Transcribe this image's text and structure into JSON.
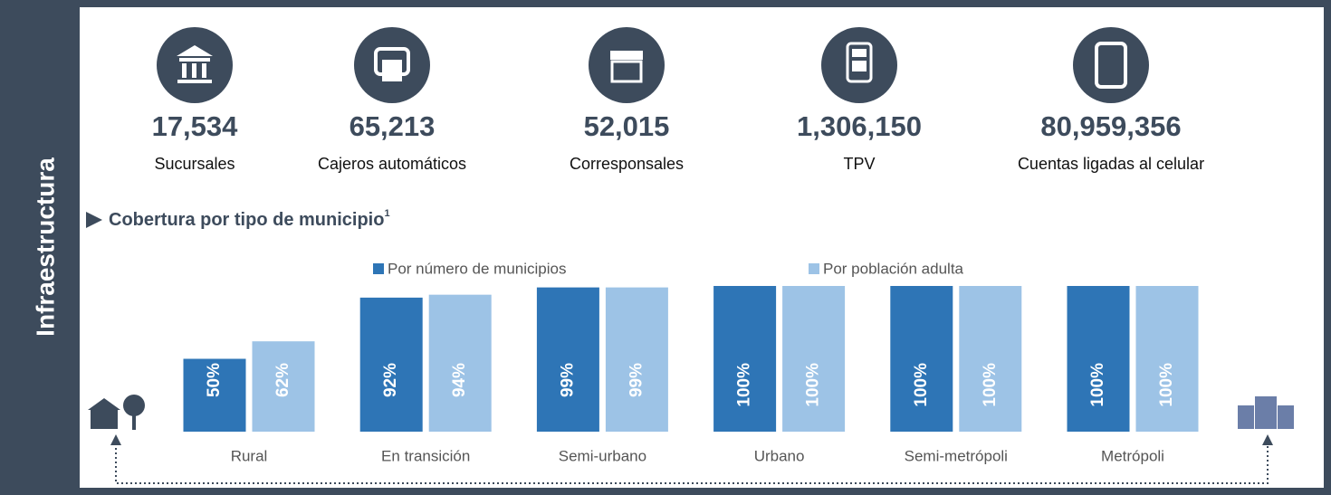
{
  "side_label": "Infraestructura",
  "stats": [
    {
      "value": "17,534",
      "label": "Sucursales"
    },
    {
      "value": "65,213",
      "label": "Cajeros automáticos"
    },
    {
      "value": "52,015",
      "label": "Corresponsales"
    },
    {
      "value": "1,306,150",
      "label": "TPV"
    },
    {
      "value": "80,959,356",
      "label": "Cuentas ligadas al celular"
    }
  ],
  "chart_data": {
    "type": "bar",
    "title": "Cobertura por tipo de municipio",
    "title_note": "1",
    "categories": [
      "Rural",
      "En transición",
      "Semi-urbano",
      "Urbano",
      "Semi-metrópoli",
      "Metrópoli"
    ],
    "series": [
      {
        "name": "Por número de municipios",
        "color": "#2e75b6",
        "values": [
          50,
          92,
          99,
          100,
          100,
          100
        ],
        "value_labels": [
          "50%",
          "92%",
          "99%",
          "100%",
          "100%",
          "100%"
        ]
      },
      {
        "name": "Por población adulta",
        "color": "#9dc3e6",
        "values": [
          62,
          94,
          99,
          100,
          100,
          100
        ],
        "value_labels": [
          "62%",
          "94%",
          "99%",
          "100%",
          "100%",
          "100%"
        ]
      }
    ],
    "ylim": [
      0,
      100
    ]
  }
}
